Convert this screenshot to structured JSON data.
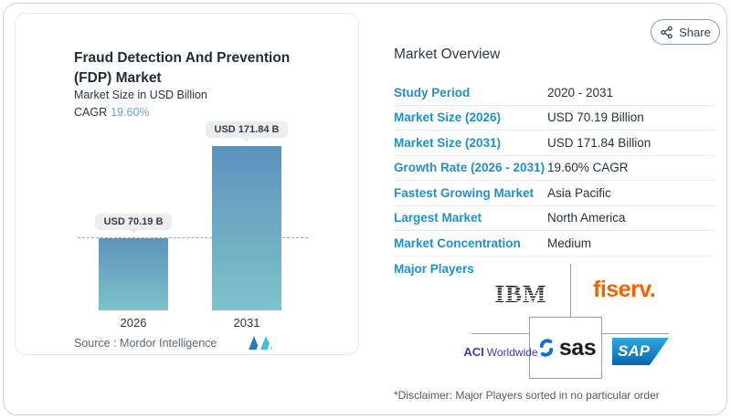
{
  "share": {
    "label": "Share"
  },
  "chart_card": {
    "title_line1": "Fraud Detection And Prevention",
    "title_line2": "(FDP) Market",
    "subtitle": "Market Size in USD Billion",
    "cagr_label": "CAGR",
    "cagr_value": "19.60%",
    "source_label": "Source :",
    "source_value": "Mordor Intelligence"
  },
  "chart_data": {
    "type": "bar",
    "title": "Fraud Detection And Prevention (FDP) Market",
    "subtitle": "Market Size in USD Billion",
    "cagr": "19.60%",
    "unit": "USD Billion",
    "categories": [
      "2026",
      "2031"
    ],
    "values": [
      70.19,
      171.84
    ],
    "value_labels": [
      "USD 70.19 B",
      "USD 171.84 B"
    ],
    "ylim": [
      0,
      185
    ],
    "grid": false,
    "reference_line": {
      "value": 70.19,
      "style": "dashed"
    },
    "bar_gradient": [
      "#5e92bc",
      "#7ec3ca"
    ]
  },
  "overview": {
    "title": "Market Overview",
    "rows": [
      {
        "label": "Study Period",
        "value": "2020 - 2031"
      },
      {
        "label": "Market Size (2026)",
        "value": "USD 70.19 Billion"
      },
      {
        "label": "Market Size (2031)",
        "value": "USD 171.84 Billion"
      },
      {
        "label": "Growth Rate (2026 - 2031)",
        "value": "19.60% CAGR"
      },
      {
        "label": "Fastest Growing Market",
        "value": "Asia Pacific"
      },
      {
        "label": "Largest Market",
        "value": "North America"
      },
      {
        "label": "Market Concentration",
        "value": "Medium"
      }
    ],
    "major_players_label": "Major Players",
    "disclaimer": "*Disclaimer: Major Players sorted in no particular order"
  },
  "players": {
    "ibm": "IBM",
    "fiserv": "fiserv.",
    "aci_name": "ACI",
    "aci_word": "Worldwide",
    "sas": "sas",
    "sap": "SAP"
  },
  "colors": {
    "accent_blue": "#1f91c8",
    "navy_text": "#26323e",
    "cagr_blue": "#68a9cb",
    "bar_top": "#5e92bc",
    "bar_bottom": "#7ec3ca",
    "fiserv_orange": "#f06400",
    "aci_indigo": "#3a3ab8",
    "sap_blue": "#0a66ad",
    "sas_blue": "#0e72c6"
  },
  "icons": [
    "share-icon",
    "mordor-intelligence-logo",
    "sas-swirl-icon"
  ]
}
